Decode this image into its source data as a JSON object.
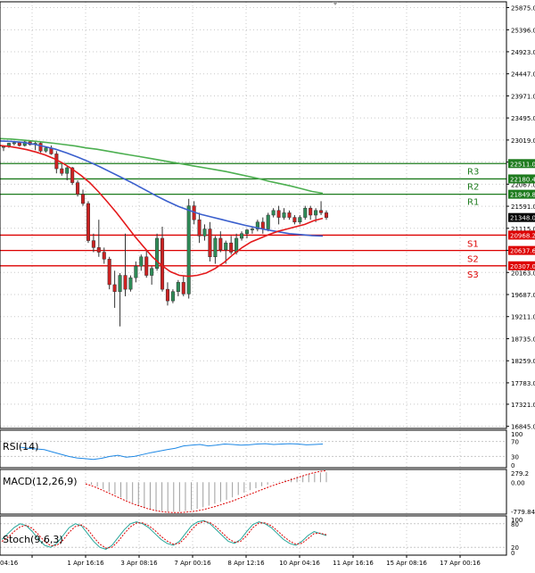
{
  "colors": {
    "background": "#ffffff",
    "grid": "#c8c8c8",
    "frame": "#000000",
    "candle": "#2e8b57",
    "ma_fast": "#e41a1c",
    "ma_mid": "#3a5fcd",
    "ma_slow": "#4caf50",
    "resistance": "#1e7b1e",
    "support": "#dd0000",
    "current_price_bg": "#000000",
    "rsi_line": "#1e88e5",
    "macd_hist": "#9e9e9e",
    "macd_signal": "#dd0000",
    "stoch_k": "#26a69a",
    "stoch_d": "#dd0000"
  },
  "chart_data": {
    "type": "candlestick",
    "symbol_panel": {
      "ylim": [
        16800,
        26000
      ],
      "y_ticks": [
        "25875.0",
        "25396.0",
        "24923.0",
        "24447.0",
        "23971.0",
        "23495.0",
        "23019.0",
        "22544.0",
        "22067.0",
        "21591.0",
        "21115.0",
        "20639.0",
        "20163.0",
        "19687.0",
        "19211.0",
        "18735.0",
        "18259.0",
        "17783.0",
        "17321.0",
        "16845.0"
      ],
      "x_ticks": [
        "04:16",
        "1 Apr 16:16",
        "3 Apr 08:16",
        "7 Apr 00:16",
        "8 Apr 12:16",
        "10 Apr 04:16",
        "11 Apr 16:16",
        "15 Apr 08:16",
        "17 Apr 00:16"
      ],
      "candles": [
        [
          22860,
          22900,
          22780,
          22880
        ],
        [
          22880,
          22960,
          22850,
          22950
        ],
        [
          22950,
          23000,
          22900,
          22960
        ],
        [
          22960,
          22990,
          22880,
          22900
        ],
        [
          22900,
          23000,
          22880,
          22980
        ],
        [
          22980,
          23010,
          22900,
          22920
        ],
        [
          22920,
          22980,
          22800,
          22950
        ],
        [
          22950,
          22980,
          22750,
          22780
        ],
        [
          22780,
          22880,
          22750,
          22850
        ],
        [
          22850,
          22900,
          22700,
          22720
        ],
        [
          22720,
          22780,
          22300,
          22400
        ],
        [
          22400,
          22500,
          22250,
          22300
        ],
        [
          22300,
          22450,
          22150,
          22420
        ],
        [
          22420,
          22440,
          22050,
          22100
        ],
        [
          22100,
          22150,
          21800,
          21850
        ],
        [
          21850,
          21950,
          21600,
          21650
        ],
        [
          21650,
          21700,
          20800,
          20850
        ],
        [
          20850,
          21000,
          20600,
          20700
        ],
        [
          20700,
          21300,
          20500,
          20600
        ],
        [
          20600,
          20700,
          20350,
          20450
        ],
        [
          20450,
          20500,
          19800,
          19900
        ],
        [
          19900,
          20200,
          19400,
          19750
        ],
        [
          19750,
          20150,
          19000,
          20100
        ],
        [
          20100,
          21000,
          19650,
          19800
        ],
        [
          19800,
          20100,
          19750,
          20050
        ],
        [
          20050,
          20400,
          19950,
          20300
        ],
        [
          20300,
          20550,
          20200,
          20500
        ],
        [
          20500,
          20650,
          20050,
          20100
        ],
        [
          20100,
          20300,
          19900,
          20250
        ],
        [
          20250,
          21000,
          20200,
          20900
        ],
        [
          20900,
          21150,
          19750,
          19800
        ],
        [
          19800,
          19950,
          19450,
          19550
        ],
        [
          19550,
          19800,
          19500,
          19750
        ],
        [
          19750,
          20000,
          19650,
          19950
        ],
        [
          19950,
          20100,
          19650,
          19700
        ],
        [
          19700,
          21750,
          19600,
          21600
        ],
        [
          21600,
          21700,
          21200,
          21300
        ],
        [
          21300,
          21450,
          20800,
          20950
        ],
        [
          20950,
          21200,
          20850,
          21100
        ],
        [
          21100,
          21250,
          20400,
          20500
        ],
        [
          20500,
          20950,
          20350,
          20900
        ],
        [
          20900,
          21050,
          20600,
          20650
        ],
        [
          20650,
          20850,
          20350,
          20800
        ],
        [
          20800,
          20950,
          20550,
          20600
        ],
        [
          20600,
          21000,
          20550,
          20900
        ],
        [
          20900,
          21050,
          20850,
          21000
        ],
        [
          21000,
          21100,
          20900,
          21080
        ],
        [
          21080,
          21150,
          21000,
          21100
        ],
        [
          21100,
          21300,
          21050,
          21250
        ],
        [
          21250,
          21350,
          21000,
          21100
        ],
        [
          21100,
          21450,
          21050,
          21400
        ],
        [
          21400,
          21550,
          21350,
          21500
        ],
        [
          21500,
          21600,
          21200,
          21350
        ],
        [
          21350,
          21550,
          21300,
          21450
        ],
        [
          21450,
          21500,
          21300,
          21350
        ],
        [
          21350,
          21400,
          21200,
          21250
        ],
        [
          21250,
          21400,
          21200,
          21350
        ],
        [
          21350,
          21600,
          21300,
          21550
        ],
        [
          21550,
          21600,
          21300,
          21400
        ],
        [
          21400,
          21550,
          21250,
          21500
        ],
        [
          21500,
          21700,
          21400,
          21450
        ],
        [
          21450,
          21500,
          21300,
          21348
        ]
      ],
      "ma_fast": [
        22900,
        22880,
        22850,
        22810,
        22760,
        22700,
        22620,
        22520,
        22400,
        22260,
        22100,
        21900,
        21680,
        21450,
        21200,
        20950,
        20720,
        20500,
        20320,
        20180,
        20100,
        20080,
        20100,
        20150,
        20250,
        20380,
        20550,
        20700,
        20820,
        20900,
        20980,
        21050,
        21100,
        21150,
        21200,
        21280,
        21330
      ],
      "ma_mid": [
        23000,
        22990,
        22970,
        22930,
        22880,
        22820,
        22740,
        22650,
        22550,
        22440,
        22320,
        22200,
        22080,
        21950,
        21820,
        21700,
        21590,
        21500,
        21420,
        21360,
        21300,
        21240,
        21180,
        21130,
        21080,
        21040,
        21000,
        20980,
        20960,
        20950
      ],
      "ma_slow": [
        23050,
        23040,
        23020,
        23000,
        22975,
        22950,
        22920,
        22890,
        22850,
        22820,
        22780,
        22740,
        22700,
        22660,
        22620,
        22580,
        22540,
        22500,
        22460,
        22420,
        22380,
        22340,
        22290,
        22240,
        22190,
        22130,
        22080,
        22030,
        21970,
        21910,
        21870
      ],
      "levels": [
        {
          "name": "R3",
          "value": 22511.0,
          "label": "22511.0"
        },
        {
          "name": "R2",
          "value": 22180.4,
          "label": "22180.4"
        },
        {
          "name": "R1",
          "value": 21849.8,
          "label": "21849.8"
        },
        {
          "name": "S1",
          "value": 20968.2,
          "label": "20968.2"
        },
        {
          "name": "S2",
          "value": 20637.6,
          "label": "20637.6"
        },
        {
          "name": "S3",
          "value": 20307.0,
          "label": "20307.0"
        }
      ],
      "current_price": "21348.0"
    },
    "rsi_panel": {
      "title": "RSI(14)",
      "ylim": [
        0,
        100
      ],
      "y_ticks": [
        "100",
        "70",
        "30",
        "0"
      ],
      "values": [
        55,
        52,
        50,
        48,
        42,
        36,
        30,
        26,
        24,
        22,
        25,
        30,
        33,
        28,
        30,
        35,
        40,
        44,
        48,
        52,
        58,
        60,
        62,
        58,
        60,
        63,
        62,
        60,
        61,
        63,
        64,
        62,
        63,
        64,
        63,
        61,
        62,
        63
      ]
    },
    "macd_panel": {
      "title": "MACD(12,26,9)",
      "y_ticks": [
        "279.2",
        "0.00",
        "-779.84"
      ],
      "ylim": [
        -800,
        320
      ],
      "histogram": [
        -20,
        -60,
        -110,
        -170,
        -240,
        -310,
        -380,
        -450,
        -520,
        -580,
        -630,
        -670,
        -700,
        -720,
        -735,
        -740,
        -735,
        -720,
        -700,
        -670,
        -630,
        -590,
        -540,
        -490,
        -440,
        -380,
        -320,
        -260,
        -200,
        -150,
        -100,
        -60,
        -20,
        20,
        60,
        100,
        140,
        170,
        200,
        220,
        240,
        250
      ],
      "signal": [
        -40,
        -90,
        -150,
        -220,
        -290,
        -360,
        -430,
        -500,
        -560,
        -610,
        -660,
        -700,
        -730,
        -750,
        -760,
        -762,
        -755,
        -740,
        -720,
        -690,
        -650,
        -610,
        -560,
        -510,
        -460,
        -400,
        -340,
        -280,
        -220,
        -160,
        -100,
        -50,
        0,
        50,
        100,
        150,
        200,
        240,
        270,
        290
      ]
    },
    "stoch_panel": {
      "title": "Stoch(9,6,3)",
      "ylim": [
        0,
        100
      ],
      "y_ticks": [
        "100",
        "80",
        "20",
        "0"
      ],
      "k": [
        40,
        55,
        70,
        80,
        75,
        60,
        40,
        25,
        20,
        30,
        50,
        70,
        80,
        75,
        55,
        35,
        20,
        15,
        25,
        45,
        65,
        80,
        85,
        80,
        70,
        55,
        40,
        30,
        25,
        35,
        55,
        75,
        85,
        88,
        80,
        65,
        50,
        35,
        30,
        40,
        60,
        78,
        85,
        80,
        70,
        55,
        40,
        30,
        25,
        35,
        50,
        60,
        55,
        50
      ],
      "d": [
        35,
        45,
        60,
        72,
        76,
        68,
        52,
        35,
        24,
        25,
        38,
        58,
        73,
        77,
        66,
        46,
        28,
        18,
        20,
        35,
        55,
        72,
        82,
        82,
        75,
        63,
        48,
        36,
        28,
        30,
        45,
        65,
        80,
        86,
        83,
        72,
        57,
        42,
        33,
        35,
        50,
        70,
        82,
        82,
        75,
        62,
        48,
        36,
        28,
        30,
        42,
        55,
        56,
        52
      ]
    }
  }
}
